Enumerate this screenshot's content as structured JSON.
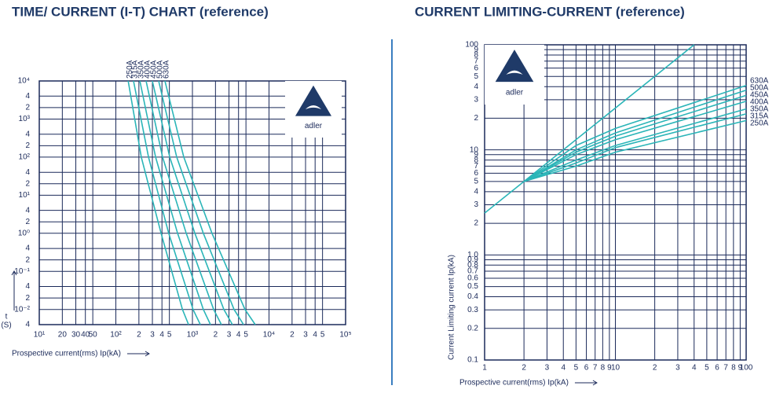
{
  "chart_data": [
    {
      "type": "line",
      "title": "TIME/ CURRENT (I-T) CHART (reference)",
      "x_label": "Prospective current(rms) Ip(kA)",
      "y_label": [
        "t",
        "(S)"
      ],
      "xlog": true,
      "ylog": true,
      "grid": true,
      "logo": "adler",
      "color_grid": "#1b2a5a",
      "xlim": [
        10,
        100000
      ],
      "ylim": [
        0.004,
        10000
      ],
      "xticks": [
        {
          "value": 10,
          "label": "10¹"
        },
        20,
        30,
        40,
        50,
        {
          "value": 100,
          "label": "10²"
        },
        {
          "value": 200,
          "label": "2"
        },
        {
          "value": 300,
          "label": "3"
        },
        {
          "value": 400,
          "label": "4"
        },
        {
          "value": 500,
          "label": "5"
        },
        {
          "value": 1000,
          "label": "10³"
        },
        {
          "value": 2000,
          "label": "2"
        },
        {
          "value": 3000,
          "label": "3"
        },
        {
          "value": 4000,
          "label": "4"
        },
        {
          "value": 5000,
          "label": "5"
        },
        {
          "value": 10000,
          "label": "10⁴"
        },
        {
          "value": 20000,
          "label": "2"
        },
        {
          "value": 30000,
          "label": "3"
        },
        {
          "value": 40000,
          "label": "4"
        },
        {
          "value": 50000,
          "label": "5"
        },
        {
          "value": 100000,
          "label": "10⁵"
        }
      ],
      "yticks": [
        {
          "value": 10000,
          "label": "10⁴"
        },
        {
          "value": 4000,
          "label": "4"
        },
        {
          "value": 2000,
          "label": "2"
        },
        {
          "value": 1000,
          "label": "10³"
        },
        {
          "value": 400,
          "label": "4"
        },
        {
          "value": 200,
          "label": "2"
        },
        {
          "value": 100,
          "label": "10²"
        },
        {
          "value": 40,
          "label": "4"
        },
        {
          "value": 20,
          "label": "2"
        },
        {
          "value": 10,
          "label": "10¹"
        },
        4,
        2,
        {
          "value": 1,
          "label": "10⁰"
        },
        {
          "value": 0.4,
          "label": "4"
        },
        {
          "value": 0.2,
          "label": "2"
        },
        {
          "value": 0.1,
          "label": "10⁻¹"
        },
        {
          "value": 0.04,
          "label": "4"
        },
        {
          "value": 0.02,
          "label": "2"
        },
        {
          "value": 0.01,
          "label": "10⁻²"
        },
        {
          "value": 0.004,
          "label": "4"
        }
      ],
      "series": [
        {
          "name": "250A",
          "color": "#2bb5b8",
          "x": [
            145,
            215,
            390,
            740,
            890
          ],
          "values": [
            10000,
            100,
            1,
            0.01,
            0.004
          ]
        },
        {
          "name": "315A",
          "color": "#2bb5b8",
          "x": [
            170,
            267,
            490,
            1020,
            1270
          ],
          "values": [
            10000,
            100,
            1,
            0.01,
            0.004
          ]
        },
        {
          "name": "350A",
          "color": "#2bb5b8",
          "x": [
            206,
            330,
            640,
            1390,
            1720
          ],
          "values": [
            10000,
            100,
            1,
            0.01,
            0.004
          ]
        },
        {
          "name": "400A",
          "color": "#2bb5b8",
          "x": [
            248,
            408,
            830,
            1890,
            2390
          ],
          "values": [
            10000,
            100,
            1,
            0.01,
            0.004
          ]
        },
        {
          "name": "450A",
          "color": "#2bb5b8",
          "x": [
            300,
            505,
            1075,
            2570,
            3330
          ],
          "values": [
            10000,
            100,
            1,
            0.01,
            0.004
          ]
        },
        {
          "name": "500A",
          "color": "#2bb5b8",
          "x": [
            362,
            624,
            1390,
            3500,
            4650
          ],
          "values": [
            10000,
            100,
            1,
            0.01,
            0.004
          ]
        },
        {
          "name": "630A",
          "color": "#2bb5b8",
          "x": [
            438,
            771,
            1800,
            4860,
            6620
          ],
          "values": [
            10000,
            100,
            1,
            0.01,
            0.004
          ]
        }
      ]
    },
    {
      "type": "line",
      "title": "CURRENT LIMITING-CURRENT (reference)",
      "x_label": "Prospective current(rms) Ip(kA)",
      "y_label": [
        "Current Limiting current Ip(kA)"
      ],
      "xlog": true,
      "ylog": true,
      "grid": true,
      "logo": "adler",
      "color_grid": "#1b2a5a",
      "xlim": [
        1,
        100
      ],
      "ylim": [
        0.1,
        100
      ],
      "xticks": [
        1,
        2,
        3,
        4,
        5,
        6,
        7,
        8,
        9,
        10,
        {
          "value": 20,
          "label": "2"
        },
        {
          "value": 30,
          "label": "3"
        },
        {
          "value": 40,
          "label": "4"
        },
        {
          "value": 50,
          "label": "5"
        },
        {
          "value": 60,
          "label": "6"
        },
        {
          "value": 70,
          "label": "7"
        },
        {
          "value": 80,
          "label": "8"
        },
        {
          "value": 90,
          "label": "9"
        },
        100
      ],
      "yticks": [
        0.1,
        0.2,
        0.3,
        0.4,
        0.5,
        0.6,
        0.7,
        0.8,
        0.9,
        {
          "value": 1,
          "label": "1.0"
        },
        2,
        3,
        4,
        5,
        6,
        7,
        8,
        9,
        10,
        {
          "value": 20,
          "label": "2"
        },
        {
          "value": 30,
          "label": "3"
        },
        {
          "value": 40,
          "label": "4"
        },
        {
          "value": 50,
          "label": "5"
        },
        {
          "value": 60,
          "label": "6"
        },
        {
          "value": 70,
          "label": "7"
        },
        {
          "value": 80,
          "label": "8"
        },
        {
          "value": 90,
          "label": "9"
        },
        100
      ],
      "series": [
        {
          "color": "#2bb5b8",
          "x": [
            1,
            40
          ],
          "values": [
            2.5,
            100
          ]
        },
        {
          "name": "630A",
          "color": "#2bb5b8",
          "x": [
            2,
            5,
            10,
            100
          ],
          "values": [
            5,
            11,
            16,
            41
          ]
        },
        {
          "name": "500A",
          "color": "#2bb5b8",
          "x": [
            2,
            5,
            10,
            100
          ],
          "values": [
            5,
            10,
            14.5,
            37
          ]
        },
        {
          "name": "450A",
          "color": "#2bb5b8",
          "x": [
            2,
            5,
            10,
            100
          ],
          "values": [
            5,
            9.5,
            13.5,
            33
          ]
        },
        {
          "name": "400A",
          "color": "#2bb5b8",
          "x": [
            2,
            5,
            10,
            100
          ],
          "values": [
            5,
            9,
            12.5,
            29
          ]
        },
        {
          "name": "350A",
          "color": "#2bb5b8",
          "x": [
            2,
            5,
            10,
            100
          ],
          "values": [
            5,
            8,
            11,
            24.5
          ]
        },
        {
          "name": "315A",
          "color": "#2bb5b8",
          "x": [
            2,
            5,
            10,
            100
          ],
          "values": [
            5,
            7.5,
            10.5,
            22
          ]
        },
        {
          "name": "250A",
          "color": "#2bb5b8",
          "x": [
            2,
            5,
            10,
            100
          ],
          "values": [
            5,
            7,
            9.5,
            19
          ]
        }
      ]
    }
  ]
}
